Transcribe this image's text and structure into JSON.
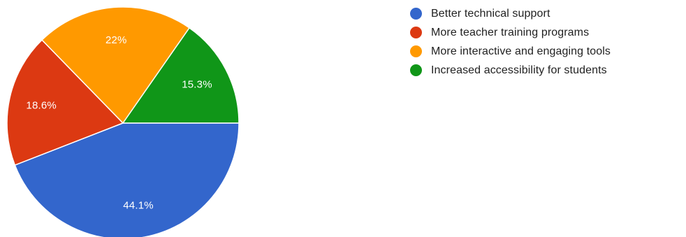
{
  "chart_data": {
    "type": "pie",
    "title": "",
    "legend_position": "right",
    "slices": [
      {
        "label": "Better technical support",
        "value": 44.1,
        "value_label": "44.1%",
        "color": "#3366cc"
      },
      {
        "label": "More teacher training programs",
        "value": 18.6,
        "value_label": "18.6%",
        "color": "#dc3912"
      },
      {
        "label": "More interactive and engaging tools",
        "value": 22,
        "value_label": "22%",
        "color": "#ff9900"
      },
      {
        "label": "Increased accessibility for students",
        "value": 15.3,
        "value_label": "15.3%",
        "color": "#109618"
      }
    ]
  }
}
